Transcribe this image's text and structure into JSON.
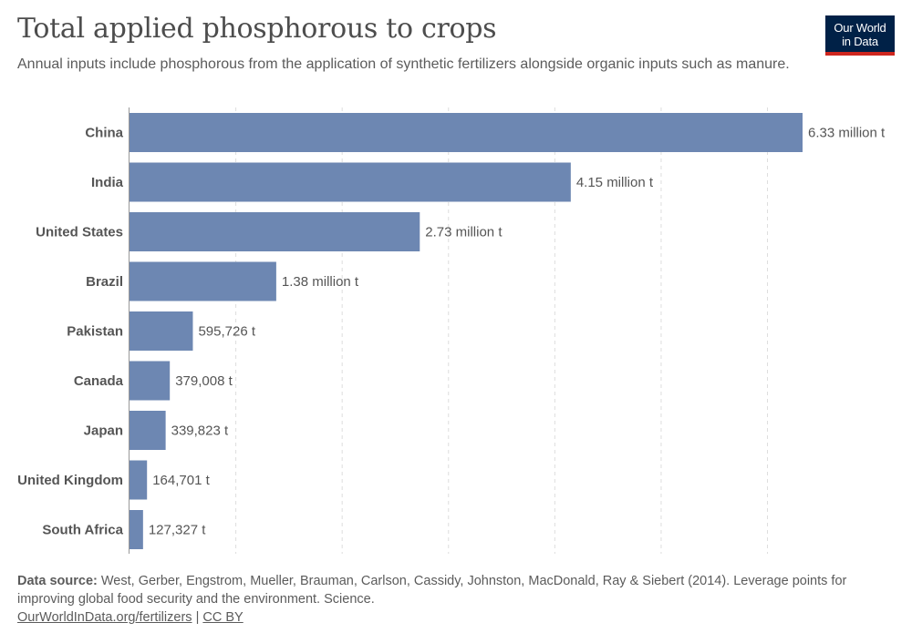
{
  "header": {
    "title": "Total applied phosphorous to crops",
    "subtitle": "Annual inputs include phosphorous from the application of synthetic fertilizers alongside organic inputs such as manure.",
    "logo_line1": "Our World",
    "logo_line2": "in Data"
  },
  "colors": {
    "bar": "#6d87b2",
    "grid": "#dddddd",
    "logo_bg": "#002147",
    "logo_accent": "#ce261e"
  },
  "chart_data": {
    "type": "bar",
    "orientation": "horizontal",
    "categories": [
      "China",
      "India",
      "United States",
      "Brazil",
      "Pakistan",
      "Canada",
      "Japan",
      "United Kingdom",
      "South Africa"
    ],
    "values": [
      6330000,
      4150000,
      2730000,
      1380000,
      595726,
      379008,
      339823,
      164701,
      127327
    ],
    "value_labels": [
      "6.33 million t",
      "4.15 million t",
      "2.73 million t",
      "1.38 million t",
      "595,726 t",
      "379,008 t",
      "339,823 t",
      "164,701 t",
      "127,327 t"
    ],
    "unit": "t",
    "xlim": [
      0,
      6330000
    ],
    "grid": "vertical dashed",
    "legend": "none"
  },
  "footer": {
    "source_label": "Data source:",
    "source_text": "West, Gerber, Engstrom, Mueller, Brauman, Carlson, Cassidy, Johnston, MacDonald, Ray & Siebert (2014). Leverage points for improving global food security and the environment. Science.",
    "link_url_text": "OurWorldInData.org/fertilizers",
    "separator": "|",
    "license": "CC BY"
  }
}
